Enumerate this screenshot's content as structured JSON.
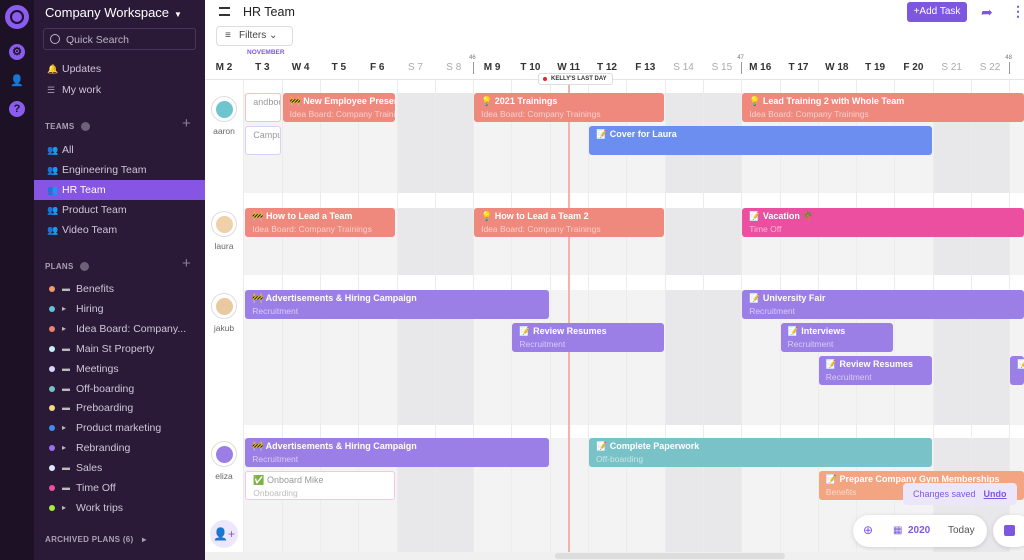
{
  "sidebar": {
    "workspace": "Company Workspace",
    "search_placeholder": "Quick Search",
    "nav": [
      {
        "label": "Updates",
        "icon": "bell-icon"
      },
      {
        "label": "My work",
        "icon": "list-icon"
      }
    ],
    "teams_heading": "TEAMS",
    "teams": [
      {
        "label": "All"
      },
      {
        "label": "Engineering Team"
      },
      {
        "label": "HR Team",
        "active": true
      },
      {
        "label": "Product Team"
      },
      {
        "label": "Video Team"
      }
    ],
    "plans_heading": "PLANS",
    "plans": [
      {
        "label": "Benefits",
        "color": "#f39a6b",
        "type": "plan"
      },
      {
        "label": "Hiring",
        "color": "#5ec6d6",
        "type": "folder"
      },
      {
        "label": "Idea Board: Company...",
        "color": "#f0806f",
        "type": "folder"
      },
      {
        "label": "Main St Property",
        "color": "#c8eef5",
        "type": "plan"
      },
      {
        "label": "Meetings",
        "color": "#d6d6fb",
        "type": "plan"
      },
      {
        "label": "Off-boarding",
        "color": "#6fc4c6",
        "type": "plan"
      },
      {
        "label": "Preboarding",
        "color": "#f7d77f",
        "type": "plan"
      },
      {
        "label": "Product marketing",
        "color": "#3d8ef0",
        "type": "folder"
      },
      {
        "label": "Rebranding",
        "color": "#9a6ff0",
        "type": "folder"
      },
      {
        "label": "Sales",
        "color": "#d9ecfb",
        "type": "plan"
      },
      {
        "label": "Time Off",
        "color": "#ec4fa0",
        "type": "plan"
      },
      {
        "label": "Work trips",
        "color": "#a6ec3c",
        "type": "folder"
      }
    ],
    "archived": "ARCHIVED PLANS (6)"
  },
  "header": {
    "title": "HR Team",
    "add_task": "+Add Task",
    "filters": "Filters",
    "month": "NOVEMBER"
  },
  "days": [
    {
      "label": "M 2"
    },
    {
      "label": "T 3"
    },
    {
      "label": "W 4"
    },
    {
      "label": "T 5"
    },
    {
      "label": "F 6"
    },
    {
      "label": "S 7",
      "weekend": true
    },
    {
      "label": "S 8",
      "weekend": true
    },
    {
      "label": "M 9",
      "week": "46"
    },
    {
      "label": "T 10"
    },
    {
      "label": "W 11"
    },
    {
      "label": "T 12"
    },
    {
      "label": "F 13"
    },
    {
      "label": "S 14",
      "weekend": true
    },
    {
      "label": "S 15",
      "weekend": true
    },
    {
      "label": "M 16",
      "week": "47"
    },
    {
      "label": "T 17"
    },
    {
      "label": "W 18"
    },
    {
      "label": "T 19"
    },
    {
      "label": "F 20"
    },
    {
      "label": "S 21",
      "weekend": true
    },
    {
      "label": "S 22",
      "weekend": true
    },
    {
      "label": "M",
      "week": "48"
    }
  ],
  "today_marker": "KELLY'S LAST DAY",
  "colors": {
    "salmon": "#ef897e",
    "blue": "#6c8ef0",
    "purple": "#9b7fe6",
    "teal": "#79c2c8",
    "pink": "#ec4fa0",
    "orange": "#f3a480",
    "accent": "#7e57e0"
  },
  "people": [
    {
      "name": "aaron",
      "events": [
        {
          "title": "andbook",
          "start": 3,
          "end": 3,
          "ghost": true
        },
        {
          "title": "Campus",
          "start": 3,
          "end": 3,
          "ghost": true,
          "lane": 1
        },
        {
          "title": "🚧 New Employee Presentation",
          "sub": "Idea Board: Company Trainings",
          "start": 4,
          "end": 6,
          "color": "salmon"
        },
        {
          "title": "💡 2021 Trainings",
          "sub": "Idea Board: Company Trainings",
          "start": 9,
          "end": 13,
          "color": "salmon"
        },
        {
          "title": "💡 Lead Training 2 with Whole Team",
          "sub": "Idea Board: Company Trainings",
          "start": 16,
          "end": 23,
          "color": "salmon"
        },
        {
          "title": "📝 Cover for Laura",
          "sub": "",
          "start": 12,
          "end": 20,
          "color": "blue",
          "lane": 1
        }
      ]
    },
    {
      "name": "laura",
      "events": [
        {
          "title": "🚧 How to Lead a Team",
          "sub": "Idea Board: Company Trainings",
          "start": 3,
          "end": 6,
          "color": "salmon"
        },
        {
          "title": "💡 How to Lead a Team 2",
          "sub": "Idea Board: Company Trainings",
          "start": 9,
          "end": 13,
          "color": "salmon"
        },
        {
          "title": "📝 Vacation 🌴",
          "sub": "Time Off",
          "start": 16,
          "end": 23,
          "color": "pink"
        }
      ]
    },
    {
      "name": "jakub",
      "events": [
        {
          "title": "🚧 Advertisements & Hiring Campaign",
          "sub": "Recruitment",
          "start": 3,
          "end": 10,
          "color": "purple"
        },
        {
          "title": "📝 Review Resumes",
          "sub": "Recruitment",
          "start": 10,
          "end": 13,
          "color": "purple",
          "lane": 1
        },
        {
          "title": "📝 University Fair",
          "sub": "Recruitment",
          "start": 16,
          "end": 23,
          "color": "purple"
        },
        {
          "title": "📝 Interviews",
          "sub": "Recruitment",
          "start": 17,
          "end": 19,
          "color": "purple",
          "lane": 1
        },
        {
          "title": "📝 Review Resumes",
          "sub": "Recruitment",
          "start": 18,
          "end": 20,
          "color": "purple",
          "lane": 2
        },
        {
          "title": "📝",
          "sub": "",
          "start": 23,
          "end": 23,
          "color": "purple",
          "lane": 2
        }
      ]
    },
    {
      "name": "eliza",
      "events": [
        {
          "title": "🚧 Advertisements & Hiring Campaign",
          "sub": "Recruitment",
          "start": 3,
          "end": 10,
          "color": "purple"
        },
        {
          "title": "📝 Complete Paperwork",
          "sub": "Off-boarding",
          "start": 12,
          "end": 20,
          "color": "teal"
        },
        {
          "title": "✅ Onboard Mike",
          "sub": "Onboarding",
          "start": 3,
          "end": 6,
          "ghost": true,
          "lane": 1
        },
        {
          "title": "📝 Prepare Company Gym Memberships",
          "sub": "Benefits",
          "start": 18,
          "end": 23,
          "color": "orange",
          "lane": 1
        }
      ]
    }
  ],
  "toast": {
    "text": "Changes saved",
    "action": "Undo"
  },
  "toolbar": {
    "year": "2020",
    "today": "Today"
  }
}
